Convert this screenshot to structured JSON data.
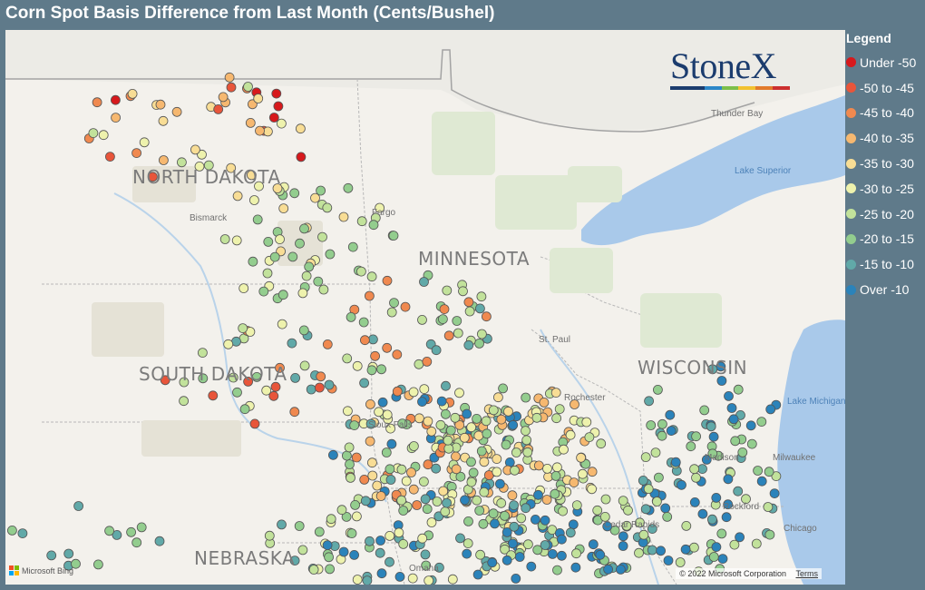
{
  "title": "Corn Spot Basis Difference from Last Month (Cents/Bushel)",
  "legend": {
    "title": "Legend",
    "items": [
      {
        "label": "Under -50",
        "color": "#d7191c"
      },
      {
        "label": "-50 to -45",
        "color": "#e8553a"
      },
      {
        "label": "-45 to -40",
        "color": "#f0894f"
      },
      {
        "label": "-40 to -35",
        "color": "#f6b870"
      },
      {
        "label": "-35 to -30",
        "color": "#f8dd95"
      },
      {
        "label": "-30 to -25",
        "color": "#eef2ad"
      },
      {
        "label": "-25 to -20",
        "color": "#c2e29b"
      },
      {
        "label": "-20 to -15",
        "color": "#93cd8e"
      },
      {
        "label": "-15 to -10",
        "color": "#61a9a8"
      },
      {
        "label": "Over -10",
        "color": "#2b83ba"
      }
    ]
  },
  "map": {
    "states": [
      "NORTH DAKOTA",
      "MINNESOTA",
      "SOUTH DAKOTA",
      "WISCONSIN",
      "NEBRASKA"
    ],
    "cities": [
      "Thunder Bay",
      "Bismarck",
      "Fargo",
      "St. Paul",
      "Rochester",
      "Madison",
      "Milwaukee",
      "Rockford",
      "Cedar Rapids",
      "Chicago",
      "Omaha",
      "Sioux Falls"
    ],
    "lakes": [
      "Lake Superior",
      "Lake Michigan"
    ],
    "attribution": {
      "provider": "Microsoft Bing",
      "copyright": "© 2022 Microsoft Corporation",
      "terms": "Terms"
    },
    "logo": "StoneX",
    "logo_colors": [
      "#1b3c6e",
      "#1b3c6e",
      "#2c87c8",
      "#7cbf4a",
      "#f2c230",
      "#e27a2b",
      "#cc2f2f"
    ]
  }
}
